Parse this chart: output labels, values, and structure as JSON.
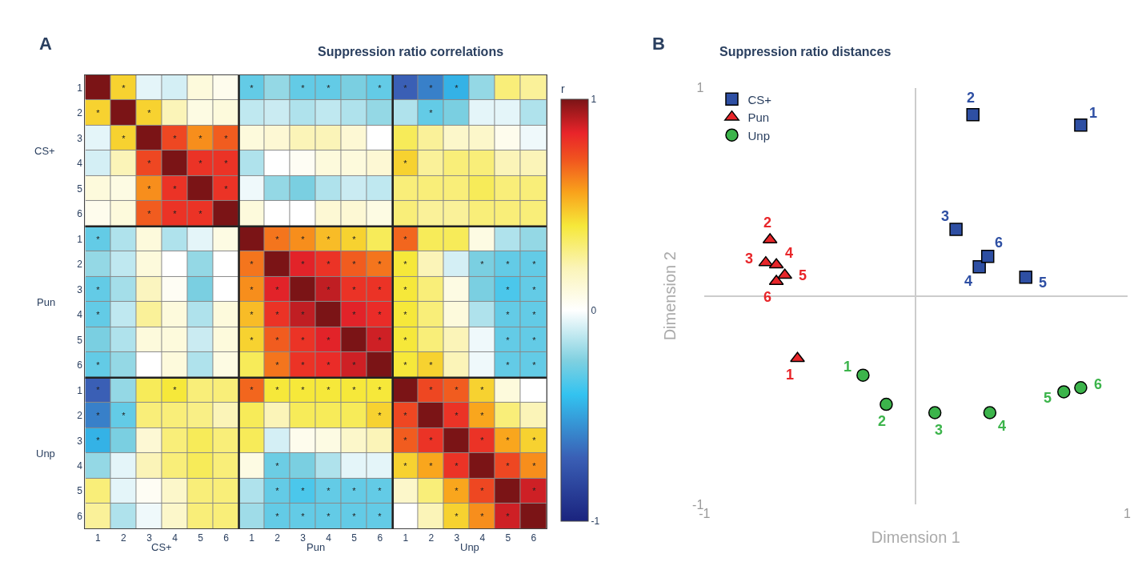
{
  "chart_data": [
    {
      "type": "heatmap",
      "title": "Suppression ratio correlations",
      "clabel": "r",
      "annotations": [
        "A",
        "CS+",
        "Pun",
        "Unp",
        "CS+",
        "Pun",
        "Unp"
      ],
      "categories": [
        "1",
        "2",
        "3",
        "4",
        "5",
        "6",
        "1",
        "2",
        "3",
        "4",
        "5",
        "6",
        "1",
        "2",
        "3",
        "4",
        "5",
        "6"
      ],
      "y_categories": [
        "1",
        "2",
        "3",
        "4",
        "5",
        "6",
        "1",
        "2",
        "3",
        "4",
        "5",
        "6",
        "1",
        "2",
        "3",
        "4",
        "5",
        "6"
      ],
      "clim": [
        -1,
        1
      ],
      "cticks": [
        -1,
        0,
        1
      ],
      "cells": [
        [
          1,
          0.45,
          -0.05,
          -0.08,
          0.1,
          0.05,
          -0.3,
          -0.2,
          -0.3,
          -0.3,
          -0.25,
          -0.3,
          -0.7,
          -0.6,
          -0.45,
          -0.2,
          0.3,
          0.25
        ],
        [
          0.45,
          1,
          0.45,
          0.2,
          0.08,
          0.1,
          -0.12,
          -0.1,
          -0.15,
          -0.12,
          -0.15,
          -0.2,
          -0.15,
          -0.3,
          -0.25,
          -0.05,
          -0.05,
          -0.15
        ],
        [
          -0.05,
          0.45,
          1,
          0.75,
          0.6,
          0.7,
          0.1,
          0.12,
          0.2,
          0.2,
          0.12,
          0,
          0.35,
          0.25,
          0.15,
          0.15,
          0.05,
          -0.03
        ],
        [
          -0.08,
          0.2,
          0.75,
          1,
          0.8,
          0.8,
          -0.15,
          0,
          0.03,
          0.1,
          0.1,
          0.12,
          0.45,
          0.25,
          0.3,
          0.3,
          0.2,
          0.2
        ],
        [
          0.1,
          0.08,
          0.6,
          0.8,
          1,
          0.8,
          -0.03,
          -0.2,
          -0.25,
          -0.15,
          -0.1,
          -0.12,
          0.3,
          0.3,
          0.3,
          0.35,
          0.3,
          0.3
        ],
        [
          0.05,
          0.1,
          0.7,
          0.8,
          0.8,
          1,
          0.1,
          0,
          0,
          0.12,
          0.12,
          0.08,
          0.3,
          0.25,
          0.25,
          0.3,
          0.3,
          0.3
        ],
        [
          -0.3,
          -0.15,
          0.1,
          -0.15,
          -0.05,
          0.08,
          1,
          0.65,
          0.6,
          0.5,
          0.45,
          0.35,
          0.68,
          0.35,
          0.35,
          0.08,
          -0.15,
          -0.2
        ],
        [
          -0.2,
          -0.12,
          0.1,
          0,
          -0.2,
          0,
          0.65,
          1,
          0.85,
          0.8,
          0.7,
          0.65,
          0.4,
          0.2,
          -0.08,
          -0.25,
          -0.3,
          -0.3
        ],
        [
          -0.3,
          -0.17,
          0.18,
          0.03,
          -0.25,
          0,
          0.6,
          0.85,
          1,
          0.9,
          0.8,
          0.8,
          0.4,
          0.3,
          0.08,
          -0.25,
          -0.35,
          -0.3
        ],
        [
          -0.3,
          -0.12,
          0.25,
          0.1,
          -0.15,
          0.1,
          0.5,
          0.8,
          0.9,
          1,
          0.85,
          0.82,
          0.4,
          0.3,
          0.1,
          -0.15,
          -0.3,
          -0.3
        ],
        [
          -0.25,
          -0.15,
          0.1,
          0.1,
          -0.1,
          0.1,
          0.45,
          0.7,
          0.8,
          0.85,
          1,
          0.88,
          0.4,
          0.3,
          0.2,
          -0.03,
          -0.3,
          -0.3
        ],
        [
          -0.3,
          -0.2,
          0,
          0.1,
          -0.15,
          0.08,
          0.35,
          0.65,
          0.8,
          0.82,
          0.88,
          1,
          0.4,
          0.45,
          0.2,
          -0.03,
          -0.3,
          -0.3
        ],
        [
          -0.7,
          -0.2,
          0.35,
          0.4,
          0.3,
          0.3,
          0.68,
          0.4,
          0.4,
          0.4,
          0.4,
          0.4,
          1,
          0.75,
          0.7,
          0.45,
          0.1,
          0
        ],
        [
          -0.6,
          -0.3,
          0.3,
          0.3,
          0.28,
          0.2,
          0.35,
          0.2,
          0.35,
          0.35,
          0.35,
          0.45,
          0.75,
          1,
          0.8,
          0.55,
          0.3,
          0.2
        ],
        [
          -0.45,
          -0.25,
          0.12,
          0.3,
          0.35,
          0.3,
          0.35,
          -0.08,
          0.05,
          0.08,
          0.15,
          0.2,
          0.7,
          0.8,
          1,
          0.8,
          0.55,
          0.45
        ],
        [
          -0.2,
          -0.05,
          0.2,
          0.3,
          0.35,
          0.3,
          0.08,
          -0.28,
          -0.25,
          -0.15,
          -0.05,
          -0.05,
          0.45,
          0.55,
          0.8,
          1,
          0.75,
          0.6
        ],
        [
          0.3,
          -0.05,
          0.03,
          0.15,
          0.3,
          0.3,
          -0.15,
          -0.3,
          -0.35,
          -0.3,
          -0.3,
          -0.3,
          0.15,
          0.3,
          0.55,
          0.75,
          1,
          0.88
        ],
        [
          0.25,
          -0.15,
          -0.03,
          0.15,
          0.3,
          0.3,
          -0.18,
          -0.3,
          -0.3,
          -0.3,
          -0.3,
          -0.3,
          0,
          0.2,
          0.45,
          0.6,
          0.88,
          1
        ]
      ],
      "cell_labels": [
        [
          null,
          "*",
          null,
          null,
          null,
          null,
          "*",
          null,
          "*",
          "*",
          null,
          "*",
          "*",
          "*",
          "*",
          null,
          null,
          null
        ],
        [
          "*",
          null,
          "*",
          null,
          null,
          null,
          null,
          null,
          null,
          null,
          null,
          null,
          null,
          "*",
          null,
          null,
          null,
          null
        ],
        [
          null,
          "*",
          null,
          "*",
          "*",
          "*",
          null,
          null,
          null,
          null,
          null,
          null,
          null,
          null,
          null,
          null,
          null,
          null
        ],
        [
          null,
          null,
          "*",
          null,
          "*",
          "*",
          null,
          null,
          null,
          null,
          null,
          null,
          "*",
          null,
          null,
          null,
          null,
          null
        ],
        [
          null,
          null,
          "*",
          "*",
          null,
          "*",
          null,
          null,
          null,
          null,
          null,
          null,
          null,
          null,
          null,
          null,
          null,
          null
        ],
        [
          null,
          null,
          "*",
          "*",
          "*",
          null,
          null,
          null,
          null,
          null,
          null,
          null,
          null,
          null,
          null,
          null,
          null,
          null
        ],
        [
          "*",
          null,
          null,
          null,
          null,
          null,
          null,
          "*",
          "*",
          "*",
          "*",
          null,
          "*",
          null,
          null,
          null,
          null,
          null
        ],
        [
          null,
          null,
          null,
          null,
          null,
          null,
          "*",
          null,
          "*",
          "*",
          "*",
          "*",
          "*",
          null,
          null,
          "*",
          "*",
          "*"
        ],
        [
          "*",
          null,
          null,
          null,
          null,
          null,
          "*",
          "*",
          null,
          "*",
          "*",
          "*",
          "*",
          null,
          null,
          null,
          "*",
          "*"
        ],
        [
          "*",
          null,
          null,
          null,
          null,
          null,
          "*",
          "*",
          "*",
          null,
          "*",
          "*",
          "*",
          null,
          null,
          null,
          "*",
          "*"
        ],
        [
          null,
          null,
          null,
          null,
          null,
          null,
          "*",
          "*",
          "*",
          "*",
          null,
          "*",
          "*",
          null,
          null,
          null,
          "*",
          "*"
        ],
        [
          "*",
          null,
          null,
          null,
          null,
          null,
          null,
          "*",
          "*",
          "*",
          "*",
          null,
          "*",
          "*",
          null,
          null,
          "*",
          "*"
        ],
        [
          "*",
          null,
          null,
          "*",
          null,
          null,
          "*",
          "*",
          "*",
          "*",
          "*",
          "*",
          null,
          "*",
          "*",
          "*",
          null,
          null
        ],
        [
          "*",
          "*",
          null,
          null,
          null,
          null,
          null,
          null,
          null,
          null,
          null,
          "*",
          "*",
          null,
          "*",
          "*",
          null,
          null
        ],
        [
          "*",
          null,
          null,
          null,
          null,
          null,
          null,
          null,
          null,
          null,
          null,
          null,
          "*",
          "*",
          null,
          "*",
          "*",
          "*"
        ],
        [
          null,
          null,
          null,
          null,
          null,
          null,
          null,
          "*",
          null,
          null,
          null,
          null,
          "*",
          "*",
          "*",
          null,
          "*",
          "*"
        ],
        [
          null,
          null,
          null,
          null,
          null,
          null,
          null,
          "*",
          "*",
          "*",
          "*",
          "*",
          null,
          null,
          "*",
          "*",
          null,
          "*"
        ],
        [
          null,
          null,
          null,
          null,
          null,
          null,
          null,
          "*",
          "*",
          "*",
          "*",
          "*",
          null,
          null,
          "*",
          "*",
          "*",
          null
        ]
      ]
    },
    {
      "type": "scatter",
      "title": "Suppression ratio distances",
      "xlabel": "Dimension 1",
      "ylabel": "Dimension 2",
      "annotations": [
        "B",
        {
          "text": "1",
          "x": 0.78,
          "y": 0.82
        },
        {
          "text": "2",
          "x": 0.27,
          "y": 0.87
        },
        {
          "text": "3",
          "x": 0.19,
          "y": 0.32
        },
        {
          "text": "4",
          "x": 0.3,
          "y": 0.14
        },
        {
          "text": "5",
          "x": 0.52,
          "y": 0.09
        },
        {
          "text": "6",
          "x": 0.34,
          "y": 0.19
        },
        {
          "text": "1",
          "x": -0.56,
          "y": -0.3
        },
        {
          "text": "2",
          "x": -0.69,
          "y": 0.27
        },
        {
          "text": "3",
          "x": -0.71,
          "y": 0.16
        },
        {
          "text": "4",
          "x": -0.66,
          "y": 0.15
        },
        {
          "text": "5",
          "x": -0.62,
          "y": 0.1
        },
        {
          "text": "6",
          "x": -0.66,
          "y": 0.07
        },
        {
          "text": "1",
          "x": -0.25,
          "y": -0.38
        },
        {
          "text": "2",
          "x": -0.14,
          "y": -0.52
        },
        {
          "text": "3",
          "x": 0.09,
          "y": -0.56
        },
        {
          "text": "4",
          "x": 0.35,
          "y": -0.56
        },
        {
          "text": "5",
          "x": 0.7,
          "y": -0.46
        },
        {
          "text": "6",
          "x": 0.78,
          "y": -0.44
        }
      ],
      "xlim": [
        -1,
        1
      ],
      "ylim": [
        -1,
        1
      ],
      "xticks": [
        -1,
        1
      ],
      "yticks": [
        -1,
        1
      ],
      "legend": "top left",
      "series": [
        {
          "name": "CS+",
          "color": "#2e4fa3",
          "marker": "square",
          "x": [
            0.78,
            0.27,
            0.19,
            0.3,
            0.52,
            0.34
          ],
          "values": [
            0.82,
            0.87,
            0.32,
            0.14,
            0.09,
            0.19
          ]
        },
        {
          "name": "Pun",
          "color": "#e8262a",
          "marker": "triangle",
          "x": [
            -0.56,
            -0.69,
            -0.71,
            -0.66,
            -0.62,
            -0.66
          ],
          "values": [
            -0.3,
            0.27,
            0.16,
            0.15,
            0.1,
            0.07
          ]
        },
        {
          "name": "Unp",
          "color": "#3cb44b",
          "marker": "circle",
          "x": [
            -0.25,
            -0.14,
            0.09,
            0.35,
            0.7,
            0.78
          ],
          "values": [
            -0.38,
            -0.52,
            -0.56,
            -0.56,
            -0.46,
            -0.44
          ]
        }
      ]
    }
  ]
}
